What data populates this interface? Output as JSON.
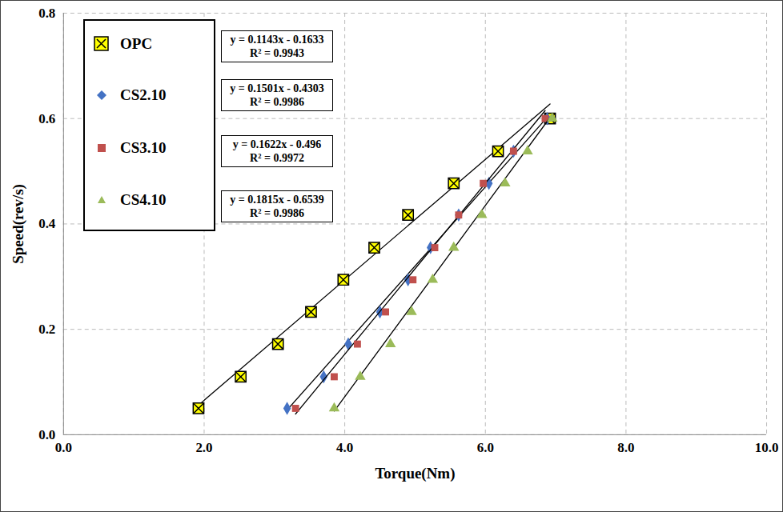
{
  "chart_data": {
    "type": "scatter",
    "x_label": "Torque(Nm)",
    "y_label": "Speed(rev/s)",
    "xlim": [
      0,
      10
    ],
    "ylim": [
      0,
      0.8
    ],
    "xticks": [
      {
        "value": 0,
        "label": "0.0"
      },
      {
        "value": 2,
        "label": "2.0"
      },
      {
        "value": 4,
        "label": "4.0"
      },
      {
        "value": 6,
        "label": "6.0"
      },
      {
        "value": 8,
        "label": "8.0"
      },
      {
        "value": 10,
        "label": "10.0"
      }
    ],
    "yticks": [
      {
        "value": 0,
        "label": "0.0"
      },
      {
        "value": 0.2,
        "label": "0.2"
      },
      {
        "value": 0.4,
        "label": "0.4"
      },
      {
        "value": 0.6,
        "label": "0.6"
      },
      {
        "value": 0.8,
        "label": "0.8"
      }
    ],
    "grid": true,
    "legend": "upper left",
    "series": [
      {
        "name": "OPC",
        "color": "#ffff00",
        "marker": "square_x",
        "x": [
          1.92,
          2.52,
          3.05,
          3.52,
          3.98,
          4.42,
          4.9,
          5.55,
          6.18,
          6.92
        ],
        "values": [
          0.05,
          0.11,
          0.172,
          0.233,
          0.294,
          0.355,
          0.417,
          0.477,
          0.538,
          0.6
        ],
        "trendline": {
          "slope": 0.1143,
          "intercept": -0.1633,
          "r2": 0.9943,
          "equation": "y = 0.1143x - 0.1633",
          "r2_label": "R² = 0.9943"
        }
      },
      {
        "name": "CS2.10",
        "color": "#4472c4",
        "marker": "diamond",
        "x": [
          3.18,
          3.7,
          4.05,
          4.5,
          4.9,
          5.22,
          5.62,
          6.05,
          6.4,
          6.88
        ],
        "values": [
          0.05,
          0.11,
          0.172,
          0.233,
          0.294,
          0.355,
          0.417,
          0.477,
          0.538,
          0.6
        ],
        "trendline": {
          "slope": 0.1501,
          "intercept": -0.4303,
          "r2": 0.9986,
          "equation": "y = 0.1501x - 0.4303",
          "r2_label": "R² = 0.9986"
        }
      },
      {
        "name": "CS3.10",
        "color": "#c0504d",
        "marker": "square",
        "x": [
          3.3,
          3.85,
          4.18,
          4.58,
          4.97,
          5.28,
          5.62,
          5.97,
          6.4,
          6.85
        ],
        "values": [
          0.05,
          0.11,
          0.172,
          0.233,
          0.294,
          0.355,
          0.417,
          0.477,
          0.538,
          0.6
        ],
        "trendline": {
          "slope": 0.1622,
          "intercept": -0.496,
          "r2": 0.9972,
          "equation": "y = 0.1622x - 0.496",
          "r2_label": "R² = 0.9972"
        }
      },
      {
        "name": "CS4.10",
        "color": "#9bbb59",
        "marker": "triangle",
        "x": [
          3.85,
          4.22,
          4.65,
          4.95,
          5.25,
          5.55,
          5.95,
          6.28,
          6.6,
          6.95
        ],
        "values": [
          0.05,
          0.11,
          0.172,
          0.233,
          0.294,
          0.355,
          0.417,
          0.477,
          0.538,
          0.6
        ],
        "trendline": {
          "slope": 0.1815,
          "intercept": -0.6539,
          "r2": 0.9986,
          "equation": "y = 0.1815x - 0.6539",
          "r2_label": "R² = 0.9986"
        }
      }
    ]
  }
}
